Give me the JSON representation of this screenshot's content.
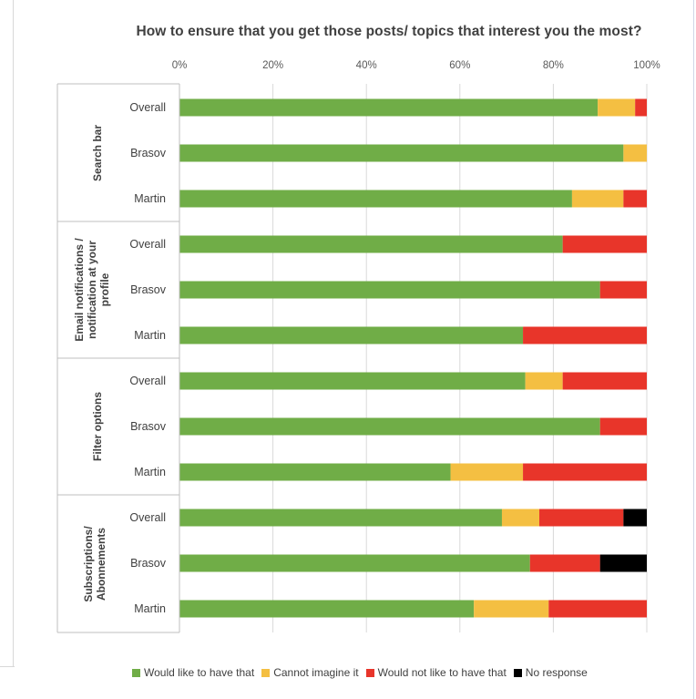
{
  "chart_data": {
    "type": "bar",
    "orientation": "horizontal",
    "stacked": true,
    "title": "How to ensure that you get those posts/ topics that interest you the most?",
    "xlim": [
      0,
      100
    ],
    "x_ticks": [
      "0%",
      "20%",
      "40%",
      "60%",
      "80%",
      "100%"
    ],
    "legend_position": "bottom",
    "groups": [
      {
        "label": "Search bar",
        "rows": [
          {
            "label": "Overall",
            "values": [
              89.5,
              8.0,
              2.5,
              0
            ]
          },
          {
            "label": "Brasov",
            "values": [
              95.0,
              5.0,
              0,
              0
            ]
          },
          {
            "label": "Martin",
            "values": [
              84.0,
              11.0,
              5.0,
              0
            ]
          }
        ]
      },
      {
        "label": "Email notifications /\nnotification at your\nprofile",
        "rows": [
          {
            "label": "Overall",
            "values": [
              82.0,
              0,
              18.0,
              0
            ]
          },
          {
            "label": "Brasov",
            "values": [
              90.0,
              0,
              10.0,
              0
            ]
          },
          {
            "label": "Martin",
            "values": [
              73.5,
              0,
              26.5,
              0
            ]
          }
        ]
      },
      {
        "label": "Filter options",
        "rows": [
          {
            "label": "Overall",
            "values": [
              74.0,
              8.0,
              18.0,
              0
            ]
          },
          {
            "label": "Brasov",
            "values": [
              90.0,
              0,
              10.0,
              0
            ]
          },
          {
            "label": "Martin",
            "values": [
              58.0,
              15.5,
              26.5,
              0
            ]
          }
        ]
      },
      {
        "label": "Subscriptions/\nAbonnements",
        "rows": [
          {
            "label": "Overall",
            "values": [
              69.0,
              8.0,
              18.0,
              5.0
            ]
          },
          {
            "label": "Brasov",
            "values": [
              75.0,
              0,
              15.0,
              10.0
            ]
          },
          {
            "label": "Martin",
            "values": [
              63.0,
              16.0,
              21.0,
              0
            ]
          }
        ]
      }
    ],
    "series": [
      {
        "name": "Would like to have that",
        "color": "#70ad47"
      },
      {
        "name": "Cannot imagine it",
        "color": "#f4bf42"
      },
      {
        "name": "Would not like to have that",
        "color": "#e8352a"
      },
      {
        "name": "No response",
        "color": "#000000"
      }
    ]
  }
}
